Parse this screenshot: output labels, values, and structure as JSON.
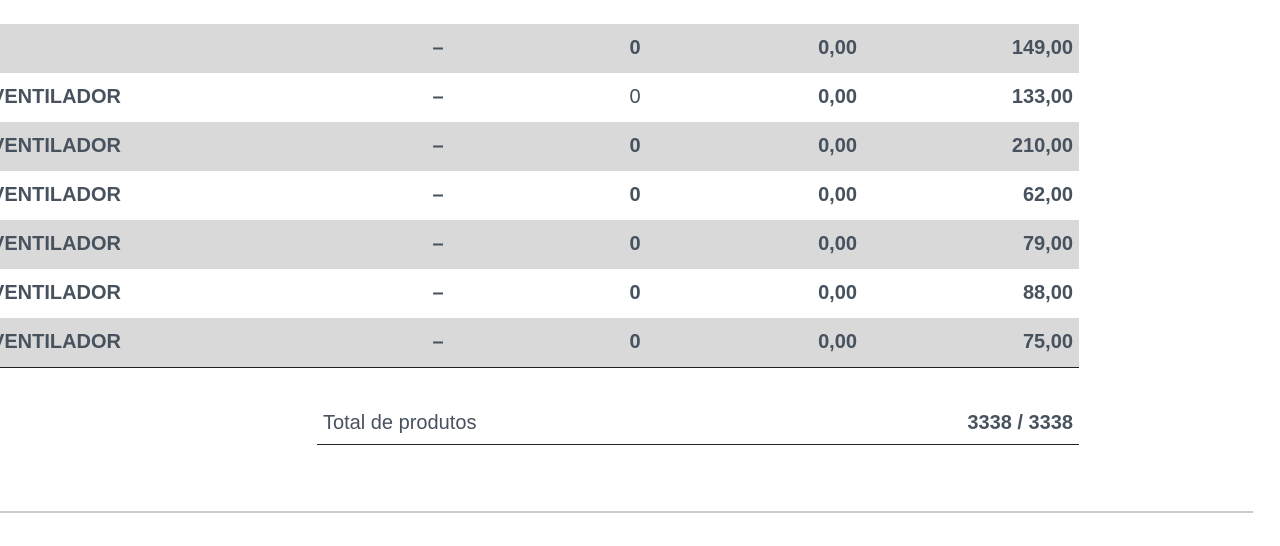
{
  "table": {
    "rows": [
      [
        null,
        "–",
        "0",
        "0,00",
        "149,00"
      ],
      [
        "VENTILADOR",
        "–",
        "0",
        "0,00",
        "133,00"
      ],
      [
        "VENTILADOR",
        "–",
        "0",
        "0,00",
        "210,00"
      ],
      [
        "VENTILADOR",
        "–",
        "0",
        "0,00",
        "62,00"
      ],
      [
        "VENTILADOR",
        "–",
        "0",
        "0,00",
        "79,00"
      ],
      [
        "VENTILADOR",
        "–",
        "0",
        "0,00",
        "88,00"
      ],
      [
        "VENTILADOR",
        "–",
        "0",
        "0,00",
        "75,00"
      ]
    ]
  },
  "total": {
    "label": "Total de produtos",
    "value": "3338 / 3338"
  }
}
